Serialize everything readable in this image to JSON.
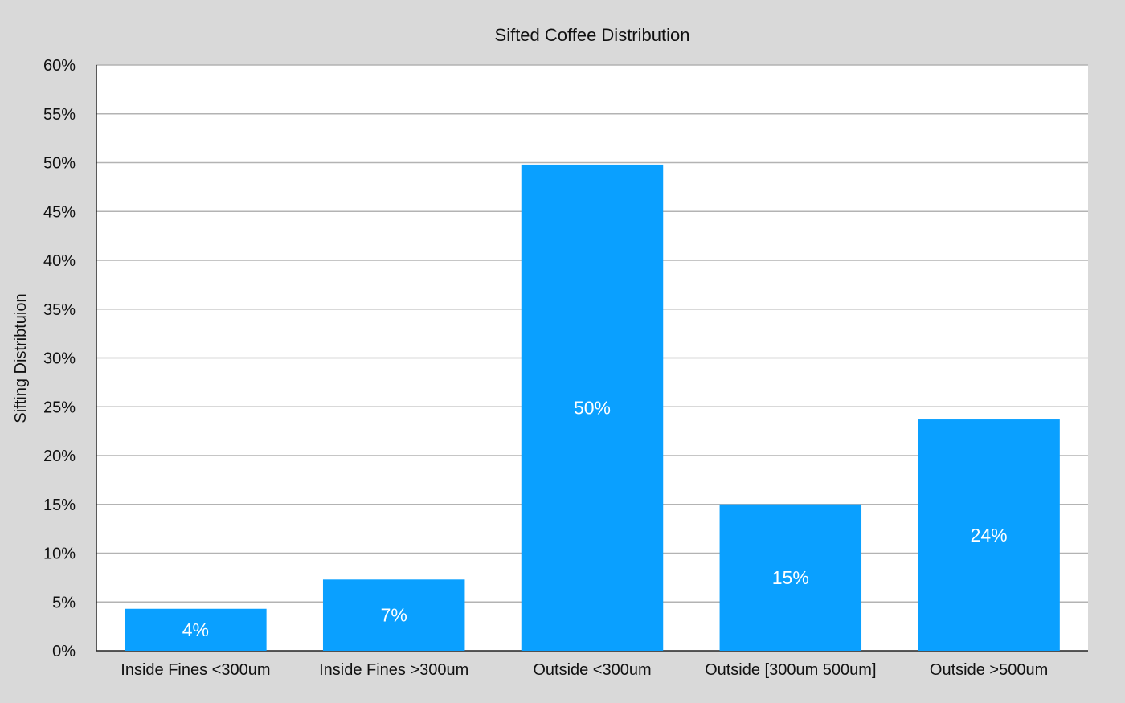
{
  "chart_data": {
    "type": "bar",
    "title": "Sifted Coffee Distribution",
    "xlabel": "",
    "ylabel": "Sifting Distribtuion",
    "categories": [
      "Inside Fines <300um",
      "Inside Fines >300um",
      "Outside <300um",
      "Outside [300um 500um]",
      "Outside >500um"
    ],
    "values": [
      4.3,
      7.3,
      49.8,
      15.0,
      23.7
    ],
    "data_labels": [
      "4%",
      "7%",
      "50%",
      "15%",
      "24%"
    ],
    "ylim": [
      0,
      60
    ],
    "yticks": [
      0,
      5,
      10,
      15,
      20,
      25,
      30,
      35,
      40,
      45,
      50,
      55,
      60
    ],
    "ytick_labels": [
      "0%",
      "5%",
      "10%",
      "15%",
      "20%",
      "25%",
      "30%",
      "35%",
      "40%",
      "45%",
      "50%",
      "55%",
      "60%"
    ],
    "grid": true,
    "legend": "none",
    "colors": {
      "bar": "#0aa0ff",
      "background": "#d9d9d9",
      "plot_area": "#ffffff",
      "grid": "#b3b3b3",
      "axis": "#222222",
      "label_on_bar": "#ffffff"
    }
  }
}
